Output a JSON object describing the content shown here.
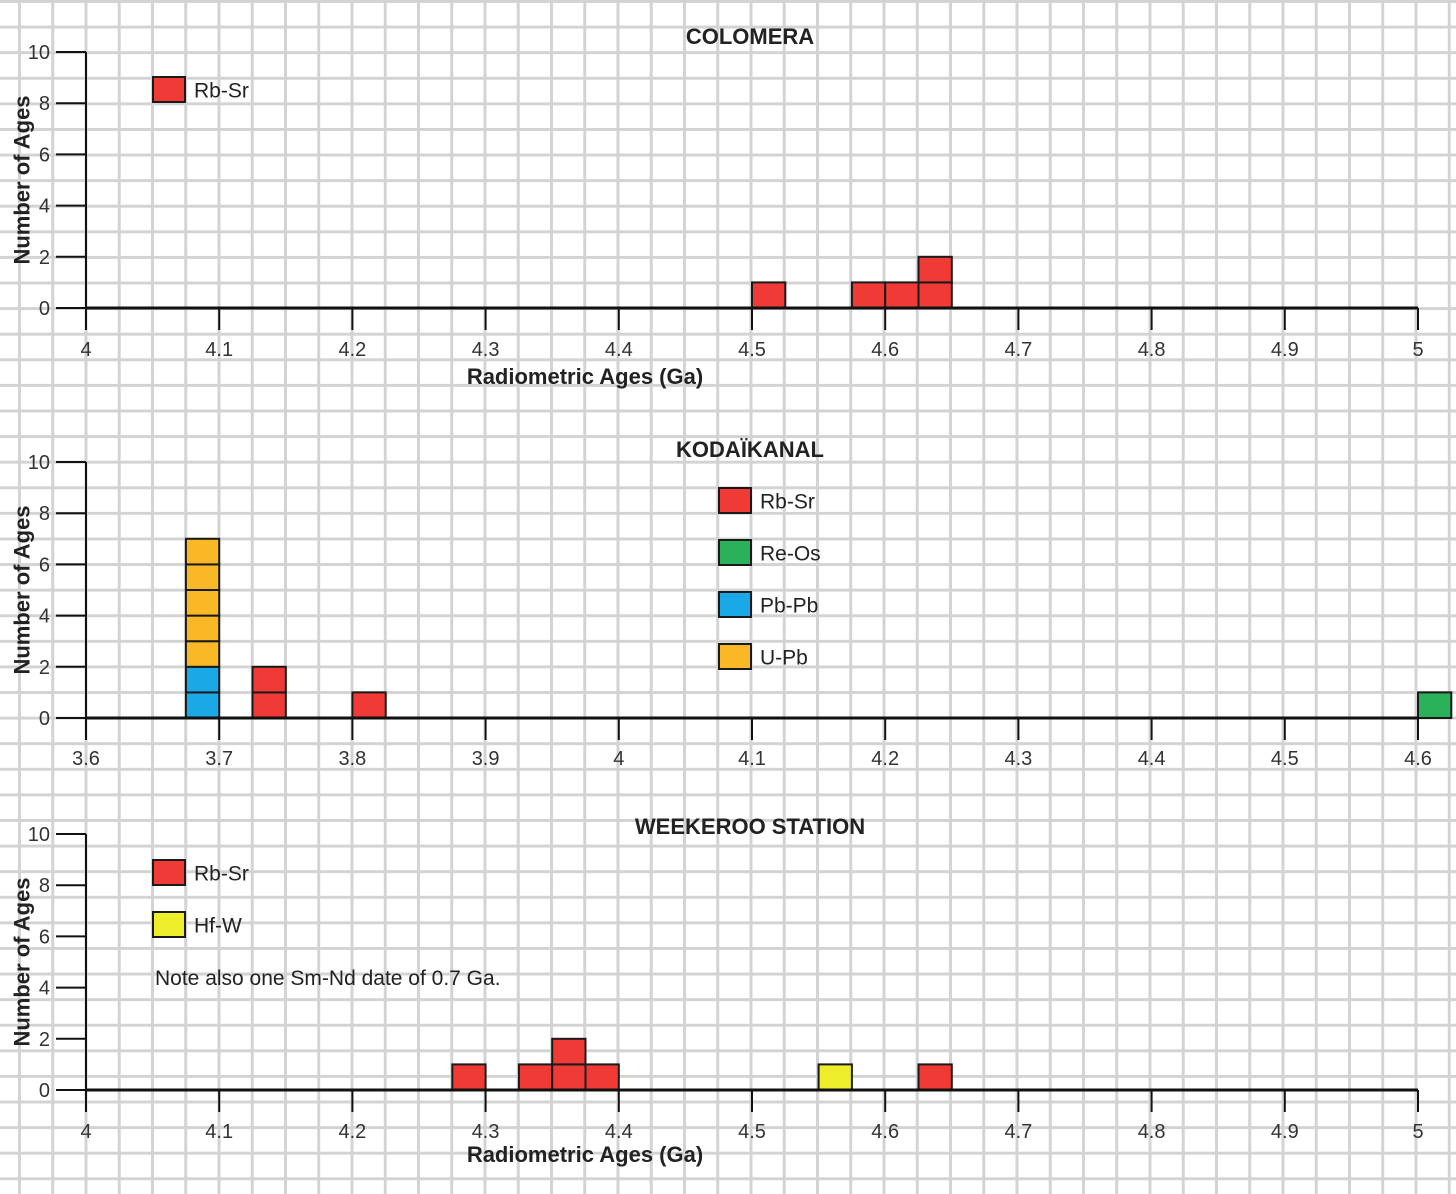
{
  "chart_data": [
    {
      "type": "bar",
      "title": "COLOMERA",
      "xlabel": "Radiometric Ages (Ga)",
      "ylabel": "Number of Ages",
      "xlim": [
        4,
        5
      ],
      "ylim": [
        0,
        10
      ],
      "xticks": [
        "4",
        "4.1",
        "4.2",
        "4.3",
        "4.4",
        "4.5",
        "4.6",
        "4.7",
        "4.8",
        "4.9",
        "5"
      ],
      "yticks": [
        "0",
        "2",
        "4",
        "6",
        "8",
        "10"
      ],
      "bin_width": 0.025,
      "legend_position": "top-left",
      "legend": [
        {
          "name": "Rb-Sr",
          "color": "#ef3a36"
        }
      ],
      "series": [
        {
          "name": "Rb-Sr",
          "bins": [
            {
              "x": 4.5,
              "count": 1
            },
            {
              "x": 4.575,
              "count": 1
            },
            {
              "x": 4.6,
              "count": 1
            },
            {
              "x": 4.625,
              "count": 2
            }
          ]
        }
      ],
      "note": ""
    },
    {
      "type": "bar",
      "title": "KODAÏKANAL",
      "xlabel": "",
      "ylabel": "Number of Ages",
      "xlim": [
        3.6,
        4.6
      ],
      "ylim": [
        0,
        10
      ],
      "xticks": [
        "3.6",
        "3.7",
        "3.8",
        "3.9",
        "4",
        "4.1",
        "4.2",
        "4.3",
        "4.4",
        "4.5",
        "4.6"
      ],
      "yticks": [
        "0",
        "2",
        "4",
        "6",
        "8",
        "10"
      ],
      "bin_width": 0.025,
      "legend_position": "top-center",
      "legend": [
        {
          "name": "Rb-Sr",
          "color": "#ef3a36"
        },
        {
          "name": "Re-Os",
          "color": "#2bb15a"
        },
        {
          "name": "Pb-Pb",
          "color": "#1aa9e6"
        },
        {
          "name": "U-Pb",
          "color": "#fbb826"
        }
      ],
      "series": [
        {
          "name": "Pb-Pb",
          "bins": [
            {
              "x": 3.675,
              "count": 2
            }
          ]
        },
        {
          "name": "U-Pb",
          "bins": [
            {
              "x": 3.675,
              "count": 5
            }
          ]
        },
        {
          "name": "Rb-Sr",
          "bins": [
            {
              "x": 3.725,
              "count": 2
            },
            {
              "x": 3.8,
              "count": 1
            }
          ]
        },
        {
          "name": "Re-Os",
          "bins": [
            {
              "x": 4.6,
              "count": 1
            }
          ]
        }
      ],
      "note": ""
    },
    {
      "type": "bar",
      "title": "WEEKEROO STATION",
      "xlabel": "Radiometric Ages (Ga)",
      "ylabel": "Number of Ages",
      "xlim": [
        4,
        5
      ],
      "ylim": [
        0,
        10
      ],
      "xticks": [
        "4",
        "4.1",
        "4.2",
        "4.3",
        "4.4",
        "4.5",
        "4.6",
        "4.7",
        "4.8",
        "4.9",
        "5"
      ],
      "yticks": [
        "0",
        "2",
        "4",
        "6",
        "8",
        "10"
      ],
      "bin_width": 0.025,
      "legend_position": "top-left",
      "legend": [
        {
          "name": "Rb-Sr",
          "color": "#ef3a36"
        },
        {
          "name": "Hf-W",
          "color": "#eded2a"
        }
      ],
      "series": [
        {
          "name": "Rb-Sr",
          "bins": [
            {
              "x": 4.275,
              "count": 1
            },
            {
              "x": 4.325,
              "count": 1
            },
            {
              "x": 4.35,
              "count": 2
            },
            {
              "x": 4.375,
              "count": 1
            },
            {
              "x": 4.625,
              "count": 1
            }
          ]
        },
        {
          "name": "Hf-W",
          "bins": [
            {
              "x": 4.55,
              "count": 1
            }
          ]
        }
      ],
      "note": "Note also one Sm-Nd date of 0.7 Ga."
    }
  ]
}
